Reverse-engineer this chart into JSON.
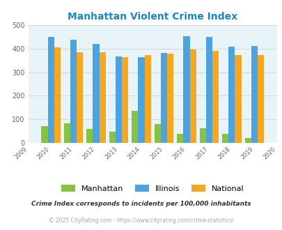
{
  "title": "Manhattan Violent Crime Index",
  "years": [
    2010,
    2011,
    2012,
    2013,
    2014,
    2015,
    2016,
    2017,
    2018,
    2019
  ],
  "manhattan": [
    70,
    82,
    58,
    45,
    135,
    78,
    38,
    62,
    38,
    20
  ],
  "illinois": [
    450,
    438,
    420,
    368,
    365,
    382,
    452,
    450,
    408,
    412
  ],
  "national": [
    406,
    384,
    384,
    363,
    372,
    380,
    398,
    392,
    372,
    372
  ],
  "bar_colors": {
    "manhattan": "#84c441",
    "illinois": "#4ca3dd",
    "national": "#f5a623"
  },
  "xlim": [
    2009,
    2020
  ],
  "ylim": [
    0,
    500
  ],
  "yticks": [
    0,
    100,
    200,
    300,
    400,
    500
  ],
  "plot_bg": "#e8f4f8",
  "fig_bg": "#ffffff",
  "title_color": "#1a86c8",
  "title_fontsize": 10,
  "legend_labels": [
    "Manhattan",
    "Illinois",
    "National"
  ],
  "footnote1": "Crime Index corresponds to incidents per 100,000 inhabitants",
  "footnote2": "© 2025 CityRating.com - https://www.cityrating.com/crime-statistics/",
  "grid_color": "#cccccc",
  "axis_label_color": "#666666",
  "bar_width": 0.28
}
